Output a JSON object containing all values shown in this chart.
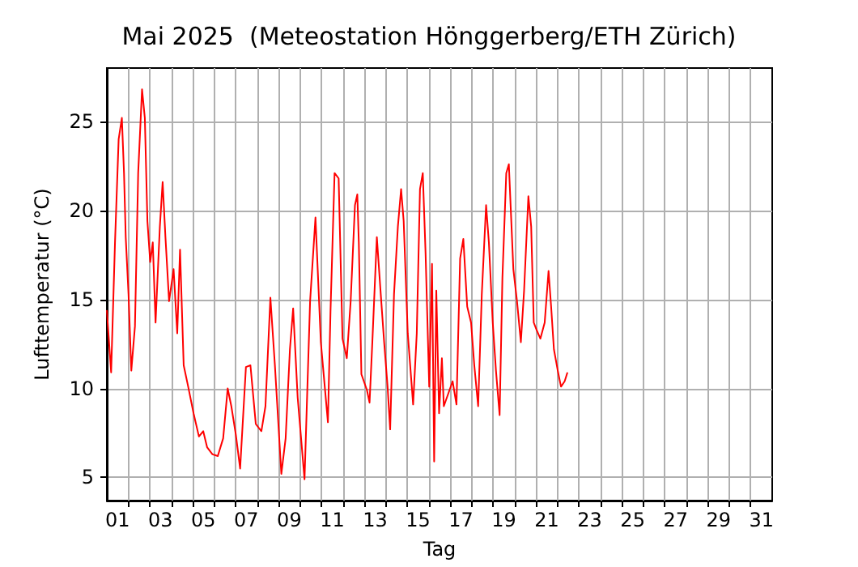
{
  "chart_data": {
    "type": "line",
    "title": "Mai 2025  (Meteostation Hönggerberg/ETH Zürich)",
    "xlabel": "Tag",
    "ylabel": "Lufttemperatur (°C)",
    "x": [
      1.0,
      1.2,
      1.38,
      1.55,
      1.7,
      1.8,
      1.88,
      2.01,
      2.14,
      2.31,
      2.46,
      2.64,
      2.77,
      2.89,
      3.02,
      3.14,
      3.27,
      3.47,
      3.6,
      3.73,
      3.9,
      4.11,
      4.28,
      4.41,
      4.58,
      4.79,
      5.04,
      5.29,
      5.49,
      5.67,
      5.92,
      6.17,
      6.42,
      6.63,
      6.8,
      7.01,
      7.21,
      7.48,
      7.69,
      7.94,
      8.2,
      8.39,
      8.62,
      8.83,
      9.13,
      9.33,
      9.53,
      9.68,
      9.89,
      10.21,
      10.47,
      10.72,
      10.97,
      11.3,
      11.42,
      11.61,
      11.8,
      11.98,
      12.18,
      12.36,
      12.56,
      12.67,
      12.74,
      12.86,
      13.12,
      13.24,
      13.37,
      13.58,
      13.75,
      13.92,
      14.08,
      14.2,
      14.38,
      14.56,
      14.71,
      14.83,
      15.02,
      15.27,
      15.44,
      15.59,
      15.72,
      15.85,
      16.02,
      16.15,
      16.25,
      16.35,
      16.48,
      16.61,
      16.7,
      17.11,
      17.29,
      17.46,
      17.61,
      17.79,
      17.97,
      18.12,
      18.3,
      18.47,
      18.67,
      18.8,
      18.98,
      19.13,
      19.3,
      19.43,
      19.61,
      19.73,
      19.94,
      20.11,
      20.29,
      20.44,
      20.64,
      20.77,
      20.89,
      21.02,
      21.2,
      21.4,
      21.58,
      21.7,
      21.83,
      22.01,
      22.16,
      22.33,
      22.46
    ],
    "series": [
      {
        "color": "#ff0000",
        "values": [
          14.4,
          10.9,
          18.2,
          24.0,
          25.2,
          22.1,
          18.5,
          15.3,
          11.0,
          13.5,
          22.1,
          26.8,
          25.2,
          19.4,
          17.1,
          18.2,
          13.7,
          19.1,
          21.6,
          18.5,
          14.9,
          16.7,
          13.1,
          17.8,
          11.3,
          10.1,
          8.6,
          7.3,
          7.6,
          6.7,
          6.3,
          6.2,
          7.2,
          10.0,
          9.0,
          7.4,
          5.5,
          11.2,
          11.3,
          8.0,
          7.6,
          9.0,
          15.1,
          11.3,
          5.2,
          7.2,
          12.2,
          14.5,
          9.5,
          4.9,
          14.9,
          19.6,
          12.6,
          8.1,
          14.3,
          22.1,
          21.8,
          12.8,
          11.7,
          14.9,
          20.3,
          20.9,
          18.2,
          10.8,
          9.9,
          9.2,
          12.6,
          18.5,
          15.5,
          12.6,
          10.1,
          7.7,
          15.3,
          19.1,
          21.2,
          19.4,
          13.1,
          9.1,
          13.1,
          21.2,
          22.1,
          17.6,
          10.1,
          17.0,
          5.9,
          15.5,
          8.6,
          11.7,
          9.0,
          10.4,
          9.1,
          17.3,
          18.4,
          14.6,
          13.7,
          11.3,
          9.0,
          15.3,
          20.3,
          18.2,
          13.7,
          11.0,
          8.5,
          16.2,
          22.1,
          22.6,
          16.7,
          14.9,
          12.6,
          15.5,
          20.8,
          19.1,
          13.7,
          13.3,
          12.8,
          13.7,
          16.6,
          14.6,
          12.2,
          11.0,
          10.1,
          10.4,
          10.9
        ]
      }
    ],
    "xlim": [
      1,
      32
    ],
    "xticks": [
      {
        "value": 1.5,
        "label": "01"
      },
      {
        "value": 2,
        "label": null
      },
      {
        "value": 3,
        "label": null
      },
      {
        "value": 3.5,
        "label": "03"
      },
      {
        "value": 4,
        "label": null
      },
      {
        "value": 5,
        "label": null
      },
      {
        "value": 5.5,
        "label": "05"
      },
      {
        "value": 6,
        "label": null
      },
      {
        "value": 7,
        "label": null
      },
      {
        "value": 7.5,
        "label": "07"
      },
      {
        "value": 8,
        "label": null
      },
      {
        "value": 9,
        "label": null
      },
      {
        "value": 9.5,
        "label": "09"
      },
      {
        "value": 10,
        "label": null
      },
      {
        "value": 11,
        "label": null
      },
      {
        "value": 11.5,
        "label": "11"
      },
      {
        "value": 12,
        "label": null
      },
      {
        "value": 13,
        "label": null
      },
      {
        "value": 13.5,
        "label": "13"
      },
      {
        "value": 14,
        "label": null
      },
      {
        "value": 15,
        "label": null
      },
      {
        "value": 15.5,
        "label": "15"
      },
      {
        "value": 16,
        "label": null
      },
      {
        "value": 17,
        "label": null
      },
      {
        "value": 17.5,
        "label": "17"
      },
      {
        "value": 18,
        "label": null
      },
      {
        "value": 19,
        "label": null
      },
      {
        "value": 19.5,
        "label": "19"
      },
      {
        "value": 20,
        "label": null
      },
      {
        "value": 21,
        "label": null
      },
      {
        "value": 21.5,
        "label": "21"
      },
      {
        "value": 22,
        "label": null
      },
      {
        "value": 23,
        "label": null
      },
      {
        "value": 23.5,
        "label": "23"
      },
      {
        "value": 24,
        "label": null
      },
      {
        "value": 25,
        "label": null
      },
      {
        "value": 25.5,
        "label": "25"
      },
      {
        "value": 26,
        "label": null
      },
      {
        "value": 27,
        "label": null
      },
      {
        "value": 27.5,
        "label": "27"
      },
      {
        "value": 28,
        "label": null
      },
      {
        "value": 29,
        "label": null
      },
      {
        "value": 29.5,
        "label": "29"
      },
      {
        "value": 30,
        "label": null
      },
      {
        "value": 31,
        "label": null
      },
      {
        "value": 31.5,
        "label": "31"
      }
    ],
    "ylim": [
      3.7,
      28
    ],
    "yticks": [
      5,
      10,
      15,
      20,
      25
    ],
    "grid": true,
    "marker": "none",
    "line_style": "solid"
  }
}
